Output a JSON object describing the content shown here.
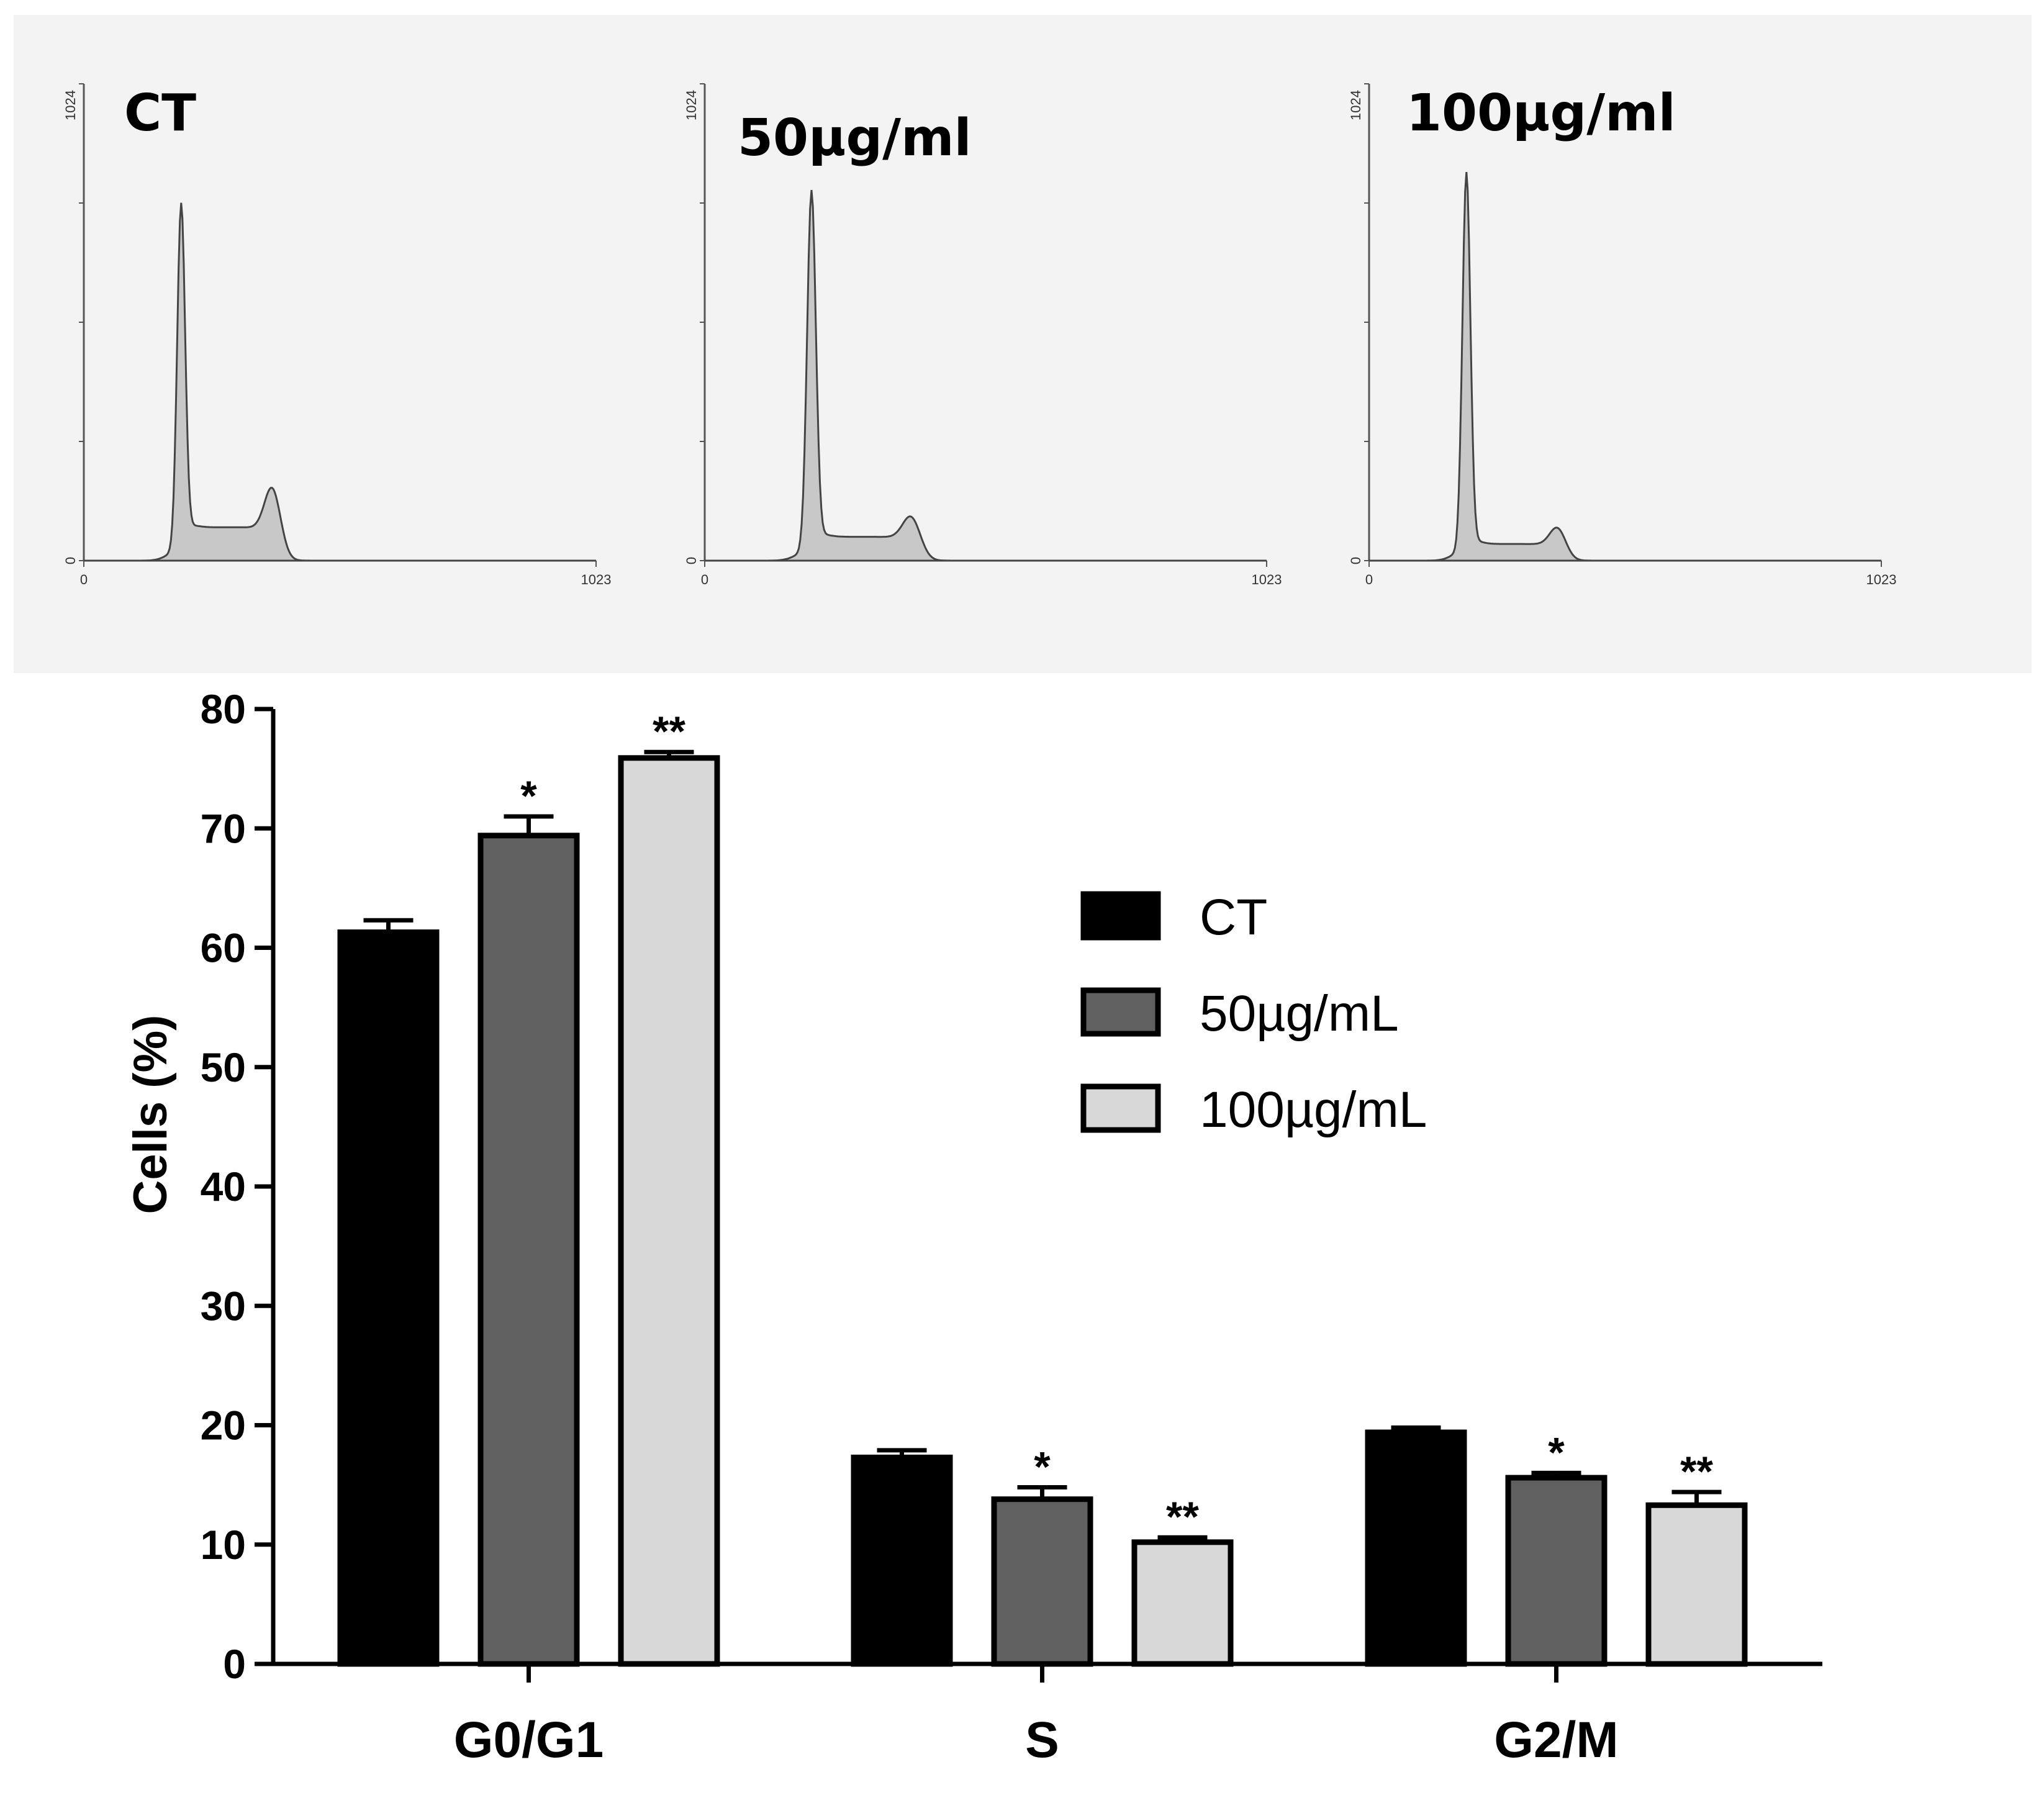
{
  "histograms": {
    "panels": [
      {
        "title": "CT",
        "y_max_label": "1024",
        "y_min_label": "0",
        "x_min_label": "0",
        "x_max_label": "1023",
        "g1_peak": 0.72,
        "s_plateau": 0.07,
        "g2_peak": 0.115
      },
      {
        "title": "50µg/ml",
        "y_max_label": "1024",
        "y_min_label": "0",
        "x_min_label": "0",
        "x_max_label": "1023",
        "g1_peak": 0.75,
        "s_plateau": 0.05,
        "g2_peak": 0.065
      },
      {
        "title": "100µg/ml",
        "y_max_label": "1024",
        "y_min_label": "0",
        "x_min_label": "0",
        "x_max_label": "1023",
        "g1_peak": 0.79,
        "s_plateau": 0.035,
        "g2_peak": 0.05
      }
    ]
  },
  "chart_data": {
    "type": "bar",
    "categories": [
      "G0/G1",
      "S",
      "G2/M"
    ],
    "series": [
      {
        "name": "CT",
        "values": [
          61.3,
          17.3,
          19.4
        ],
        "errors": [
          1.0,
          0.6,
          0.4
        ],
        "significance": [
          "",
          "",
          ""
        ]
      },
      {
        "name": "50µg/mL",
        "values": [
          69.4,
          13.8,
          15.6
        ],
        "errors": [
          1.6,
          1.0,
          0.4
        ],
        "significance": [
          "*",
          "*",
          "*"
        ]
      },
      {
        "name": "100µg/mL",
        "values": [
          75.9,
          10.2,
          13.3
        ],
        "errors": [
          0.5,
          0.4,
          1.1
        ],
        "significance": [
          "**",
          "**",
          "**"
        ]
      }
    ],
    "colors": [
      "#000000",
      "#606060",
      "#d8d8d8"
    ],
    "ylabel": "Cells (%)",
    "xlabel": "",
    "ylim": [
      0,
      80
    ],
    "yticks": [
      0,
      10,
      20,
      30,
      40,
      50,
      60,
      70,
      80
    ],
    "legend_position": "right"
  }
}
